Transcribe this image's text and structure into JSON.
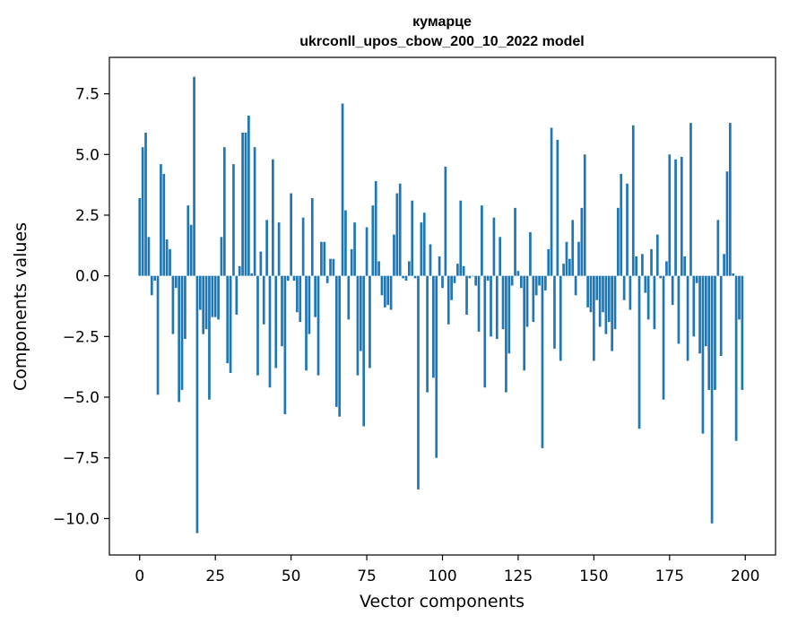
{
  "chart_data": {
    "type": "bar",
    "title_line1": "кумарце",
    "title_line2": "ukrconll_upos_cbow_200_10_2022 model",
    "xlabel": "Vector components",
    "ylabel": "Components values",
    "xlim": [
      -10,
      210
    ],
    "ylim": [
      -11.5,
      9.0
    ],
    "xticks": [
      0,
      25,
      50,
      75,
      100,
      125,
      150,
      175,
      200
    ],
    "xtick_labels": [
      "0",
      "25",
      "50",
      "75",
      "100",
      "125",
      "150",
      "175",
      "200"
    ],
    "yticks": [
      -10.0,
      -7.5,
      -5.0,
      -2.5,
      0.0,
      2.5,
      5.0,
      7.5
    ],
    "ytick_labels": [
      "−10.0",
      "−7.5",
      "−5.0",
      "−2.5",
      "0.0",
      "2.5",
      "5.0",
      "7.5"
    ],
    "bar_color": "#1f77b4",
    "x": [
      0,
      1,
      2,
      3,
      4,
      5,
      6,
      7,
      8,
      9,
      10,
      11,
      12,
      13,
      14,
      15,
      16,
      17,
      18,
      19,
      20,
      21,
      22,
      23,
      24,
      25,
      26,
      27,
      28,
      29,
      30,
      31,
      32,
      33,
      34,
      35,
      36,
      37,
      38,
      39,
      40,
      41,
      42,
      43,
      44,
      45,
      46,
      47,
      48,
      49,
      50,
      51,
      52,
      53,
      54,
      55,
      56,
      57,
      58,
      59,
      60,
      61,
      62,
      63,
      64,
      65,
      66,
      67,
      68,
      69,
      70,
      71,
      72,
      73,
      74,
      75,
      76,
      77,
      78,
      79,
      80,
      81,
      82,
      83,
      84,
      85,
      86,
      87,
      88,
      89,
      90,
      91,
      92,
      93,
      94,
      95,
      96,
      97,
      98,
      99,
      100,
      101,
      102,
      103,
      104,
      105,
      106,
      107,
      108,
      109,
      110,
      111,
      112,
      113,
      114,
      115,
      116,
      117,
      118,
      119,
      120,
      121,
      122,
      123,
      124,
      125,
      126,
      127,
      128,
      129,
      130,
      131,
      132,
      133,
      134,
      135,
      136,
      137,
      138,
      139,
      140,
      141,
      142,
      143,
      144,
      145,
      146,
      147,
      148,
      149,
      150,
      151,
      152,
      153,
      154,
      155,
      156,
      157,
      158,
      159,
      160,
      161,
      162,
      163,
      164,
      165,
      166,
      167,
      168,
      169,
      170,
      171,
      172,
      173,
      174,
      175,
      176,
      177,
      178,
      179,
      180,
      181,
      182,
      183,
      184,
      185,
      186,
      187,
      188,
      189,
      190,
      191,
      192,
      193,
      194,
      195,
      196,
      197,
      198,
      199
    ],
    "values": [
      3.2,
      5.3,
      5.9,
      1.6,
      -0.8,
      -0.2,
      -4.9,
      4.6,
      4.2,
      1.5,
      1.1,
      -2.4,
      -0.5,
      -5.2,
      -4.7,
      -2.6,
      2.9,
      2.1,
      8.2,
      -10.6,
      -1.4,
      -2.4,
      -2.2,
      -5.1,
      -1.7,
      -1.7,
      -1.8,
      1.6,
      5.3,
      -3.6,
      -4.0,
      4.6,
      -1.6,
      0.4,
      5.9,
      5.9,
      6.6,
      0.1,
      5.3,
      -4.1,
      1.0,
      -2.0,
      2.3,
      -4.6,
      4.8,
      -3.8,
      2.2,
      -2.9,
      -5.7,
      -0.2,
      3.4,
      -0.2,
      -1.5,
      -1.9,
      2.4,
      -3.9,
      -2.4,
      3.2,
      -1.7,
      -4.1,
      1.4,
      1.4,
      -0.3,
      0.7,
      0.7,
      -5.4,
      -5.8,
      7.1,
      2.7,
      -1.8,
      1.1,
      2.2,
      -4.1,
      -3.1,
      -6.2,
      2.0,
      -3.8,
      2.9,
      3.9,
      0.6,
      -0.8,
      -1.3,
      -1.2,
      -1.4,
      1.7,
      3.4,
      3.8,
      -0.1,
      -0.2,
      0.6,
      3.1,
      -0.1,
      -8.8,
      2.2,
      2.6,
      -4.8,
      1.3,
      -4.2,
      -7.5,
      0.8,
      -0.5,
      4.5,
      -2.0,
      -1.0,
      -0.3,
      0.5,
      3.1,
      0.4,
      -1.6,
      -0.1,
      0.0,
      -0.4,
      -2.3,
      2.9,
      -4.6,
      -0.2,
      -2.5,
      2.4,
      -2.6,
      1.6,
      -2.2,
      -4.8,
      -3.2,
      -0.4,
      2.8,
      0.2,
      -0.5,
      -3.9,
      -2.1,
      1.8,
      -1.9,
      -0.8,
      -0.4,
      -7.1,
      -0.6,
      1.1,
      6.1,
      -3.0,
      5.6,
      -3.5,
      0.5,
      1.4,
      0.7,
      2.3,
      -0.8,
      1.4,
      2.8,
      5.0,
      -1.3,
      -1.5,
      -3.5,
      -1.0,
      -2.1,
      -1.5,
      -2.4,
      -1.9,
      -3.1,
      -2.2,
      2.8,
      4.2,
      -1.0,
      3.8,
      -1.4,
      6.2,
      0.8,
      -6.3,
      0.9,
      -0.7,
      -1.8,
      1.1,
      -2.2,
      1.7,
      -0.1,
      -5.1,
      0.6,
      5.0,
      -1.2,
      4.8,
      -2.8,
      4.9,
      0.8,
      -3.5,
      6.3,
      -2.5,
      -0.3,
      -3.2,
      -6.5,
      -2.9,
      -4.7,
      -10.2,
      -4.7,
      2.3,
      -3.3,
      0.9,
      4.3,
      6.3,
      0.1,
      -6.8,
      -1.8,
      -4.7
    ]
  }
}
